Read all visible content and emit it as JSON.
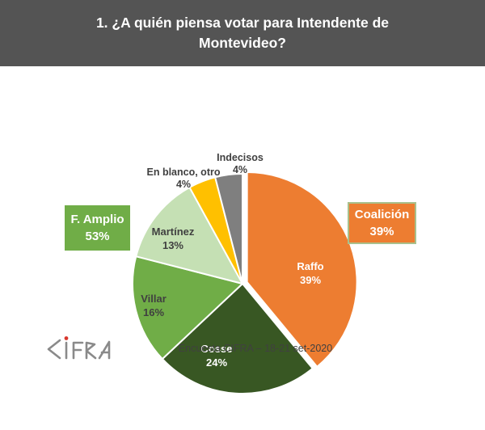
{
  "title": "1. ¿A quién piensa votar para Intendente de Montevideo?",
  "chart_data": {
    "type": "pie",
    "title": "1. ¿A quién piensa votar para Intendente de Montevideo?",
    "direction": "clockwise",
    "start_angle_deg": 0,
    "legend": "none",
    "total": 100,
    "slices": [
      {
        "label": "Raffo",
        "value": 39,
        "pct": "39%",
        "color": "#ED7D31",
        "label_color": "#FFFFFF",
        "label_placement": "inside",
        "exploded": true
      },
      {
        "label": "Cosse",
        "value": 24,
        "pct": "24%",
        "color": "#385723",
        "label_color": "#FFFFFF",
        "label_placement": "inside",
        "exploded": false
      },
      {
        "label": "Villar",
        "value": 16,
        "pct": "16%",
        "color": "#70AD47",
        "label_color": "#404040",
        "label_placement": "inside",
        "exploded": false
      },
      {
        "label": "Martínez",
        "value": 13,
        "pct": "13%",
        "color": "#C5E0B4",
        "label_color": "#404040",
        "label_placement": "inside",
        "exploded": false
      },
      {
        "label": "En blanco, otro",
        "value": 4,
        "pct": "4%",
        "color": "#FFC000",
        "label_color": "#404040",
        "label_placement": "outside",
        "exploded": false
      },
      {
        "label": "Indecisos",
        "value": 4,
        "pct": "4%",
        "color": "#7F7F7F",
        "label_color": "#404040",
        "label_placement": "outside",
        "exploded": false
      }
    ],
    "groups": [
      {
        "label": "F. Amplio",
        "pct": "53%",
        "color": "#70AD47",
        "side": "left"
      },
      {
        "label": "Coalición",
        "pct": "39%",
        "color": "#ED7D31",
        "side": "right"
      }
    ]
  },
  "footer": {
    "caption": "Encuesta CIFRA – 18-21 set-2020",
    "logo_text": "CIFRA"
  },
  "colors": {
    "title_bar": "#545454",
    "title_text": "#FFFFFF",
    "dark_label": "#404040",
    "slice_border": "#FFFFFF",
    "callout_right_border": "#A9C08C",
    "logo_gray": "#8A8A8A",
    "logo_dot_red": "#D8382E"
  }
}
